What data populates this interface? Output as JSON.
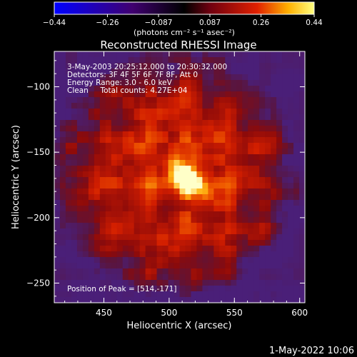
{
  "chart_data": {
    "type": "heatmap",
    "title": "Reconstructed RHESSI Image",
    "xlabel": "Heliocentric X (arcsec)",
    "ylabel": "Heliocentric Y (arcsec)",
    "xlim": [
      412,
      604
    ],
    "ylim": [
      -265,
      -73
    ],
    "xticks": [
      450,
      500,
      550,
      600
    ],
    "yticks": [
      -100,
      -150,
      -200,
      -250
    ],
    "grid": false,
    "colorbar": {
      "placement": "top",
      "min": -0.44,
      "max": 0.44,
      "ticks": [
        -0.44,
        -0.26,
        -0.087,
        0.087,
        0.26,
        0.44
      ],
      "tick_labels": [
        "−0.44",
        "−0.26",
        "−0.087",
        "0.087",
        "0.26",
        "0.44"
      ],
      "unit_label": "(photons cm⁻² s⁻¹ asec⁻²)",
      "colors": [
        "#0000ff",
        "#400070",
        "#000000",
        "#700010",
        "#e02000",
        "#ffb000",
        "#ffff80"
      ]
    },
    "annotations": [
      "3-May-2003 20:25:12.000 to 20:30:32.000",
      "Detectors: 3F 4F 5F 6F 7F 8F, Att 0",
      "Energy Range: 3.0 - 6.0 keV",
      "Clean     Total counts: 4.27E+04"
    ],
    "peak_label": "Position of Peak = [514,-171]",
    "peak": {
      "x": 514,
      "y": -171,
      "value": 0.44
    },
    "background_color": "#4a1f78"
  },
  "footer_date": "1-May-2022 10:06"
}
